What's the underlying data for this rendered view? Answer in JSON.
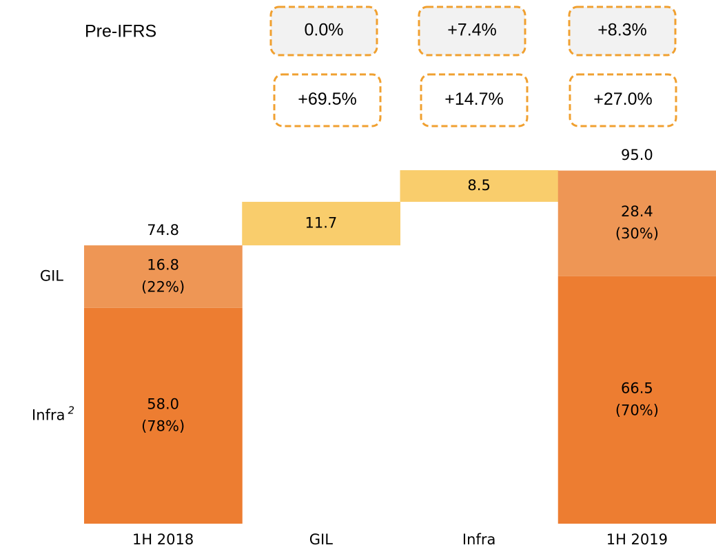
{
  "chart_data": {
    "type": "waterfall",
    "categories": [
      "1H 2018",
      "GIL",
      "Infra",
      "1H 2019"
    ],
    "series": [
      {
        "name": "Infra",
        "name_note": "2",
        "color": "#ed7d31",
        "values": [
          58.0,
          null,
          null,
          66.5
        ],
        "value_labels": [
          "58.0",
          null,
          null,
          "66.5"
        ],
        "shares": [
          78,
          null,
          null,
          70
        ],
        "share_labels": [
          "(78%)",
          null,
          null,
          "(70%)"
        ]
      },
      {
        "name": "GIL",
        "color": "#ee9655",
        "values": [
          16.8,
          null,
          null,
          28.4
        ],
        "value_labels": [
          "16.8",
          null,
          null,
          "28.4"
        ],
        "shares": [
          22,
          null,
          null,
          30
        ],
        "share_labels": [
          "(22%)",
          null,
          null,
          "(30%)"
        ]
      },
      {
        "color": "#f9cd6c",
        "values": [
          null,
          11.7,
          8.5,
          null
        ]
      }
    ],
    "totals": [
      74.8,
      null,
      null,
      95.0
    ],
    "total_labels": [
      "74.8",
      null,
      null,
      "95.0"
    ],
    "ylim": [
      0,
      100
    ],
    "growth_rows": [
      {
        "label": "Pre-IFRS",
        "fill": "#f2f2f2",
        "values": [
          0.0,
          7.4,
          8.3
        ],
        "value_labels": [
          "0.0%",
          "+7.4%",
          "+8.3%"
        ]
      },
      {
        "fill": "#ffffff",
        "values": [
          69.5,
          14.7,
          27.0
        ],
        "value_labels": [
          "+69.5%",
          "+14.7%",
          "+27.0%"
        ]
      }
    ]
  }
}
